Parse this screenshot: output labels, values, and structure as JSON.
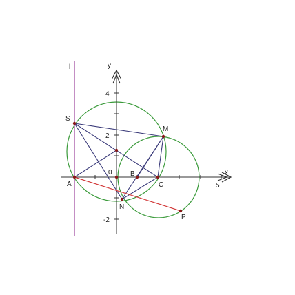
{
  "axes": {
    "x_label": "x",
    "y_label": "y",
    "origin_label": "0",
    "ticks": [
      "4",
      "2",
      "-2",
      "5"
    ]
  },
  "line_label": "l",
  "points": [
    "S",
    "M",
    "A",
    "B",
    "C",
    "N",
    "P"
  ]
}
